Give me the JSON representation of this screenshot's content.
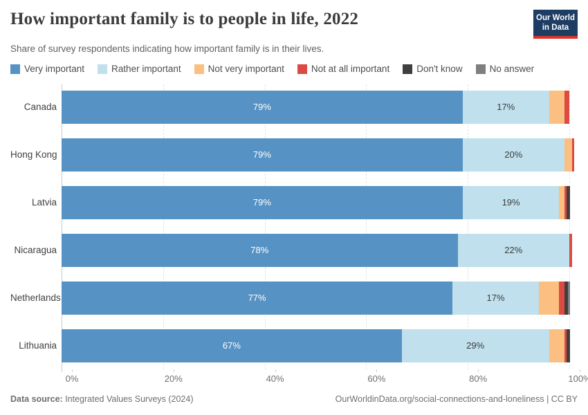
{
  "header": {
    "title": "How important family is to people in life, 2022",
    "subtitle": "Share of survey respondents indicating how important family is in their lives.",
    "logo": {
      "line1": "Our World",
      "line2": "in Data",
      "bg_color": "#1d3d63",
      "accent_color": "#dc3327"
    }
  },
  "legend": [
    {
      "label": "Very important",
      "color": "#5792c4"
    },
    {
      "label": "Rather important",
      "color": "#bfe0ec"
    },
    {
      "label": "Not very important",
      "color": "#fbbf81"
    },
    {
      "label": "Not at all important",
      "color": "#dc4b42"
    },
    {
      "label": "Don't know",
      "color": "#3f3f3f"
    },
    {
      "label": "No answer",
      "color": "#7f7f7f"
    }
  ],
  "chart_data": {
    "type": "bar",
    "orientation": "horizontal",
    "stacked": true,
    "unit": "%",
    "xlim": [
      0,
      100
    ],
    "x_ticks": [
      {
        "value": 0,
        "label": "0%"
      },
      {
        "value": 20,
        "label": "20%"
      },
      {
        "value": 40,
        "label": "40%"
      },
      {
        "value": 60,
        "label": "60%"
      },
      {
        "value": 80,
        "label": "80%"
      },
      {
        "value": 100,
        "label": "100%"
      }
    ],
    "grid": true,
    "legend_position": "top",
    "categories": [
      "Canada",
      "Hong Kong",
      "Latvia",
      "Nicaragua",
      "Netherlands",
      "Lithuania"
    ],
    "series": [
      {
        "name": "Very important",
        "color": "#5792c4",
        "label_color": "#ffffff",
        "values": [
          79,
          79,
          79,
          78,
          77,
          67
        ],
        "labels": [
          "79%",
          "79%",
          "79%",
          "78%",
          "77%",
          "67%"
        ]
      },
      {
        "name": "Rather important",
        "color": "#bfe0ec",
        "label_color": "#3d3d3d",
        "values": [
          17,
          20,
          19,
          22,
          17,
          29
        ],
        "labels": [
          "17%",
          "20%",
          "19%",
          "22%",
          "17%",
          "29%"
        ]
      },
      {
        "name": "Not very important",
        "color": "#fbbf81",
        "label_color": "#3d3d3d",
        "values": [
          3,
          1.5,
          1,
          0,
          4,
          3
        ],
        "labels": [
          "",
          "",
          "",
          "",
          "",
          ""
        ]
      },
      {
        "name": "Not at all important",
        "color": "#dc4b42",
        "label_color": "#ffffff",
        "values": [
          1,
          0.5,
          0.5,
          0.5,
          1,
          0.5
        ],
        "labels": [
          "",
          "",
          "",
          "",
          "",
          ""
        ]
      },
      {
        "name": "Don't know",
        "color": "#3f3f3f",
        "label_color": "#ffffff",
        "values": [
          0,
          0,
          0.7,
          0,
          0.8,
          0.7
        ],
        "labels": [
          "",
          "",
          "",
          "",
          "",
          ""
        ]
      },
      {
        "name": "No answer",
        "color": "#7f7f7f",
        "label_color": "#ffffff",
        "values": [
          0,
          0,
          0,
          0,
          0.3,
          0
        ],
        "labels": [
          "",
          "",
          "",
          "",
          "",
          ""
        ]
      }
    ]
  },
  "footer": {
    "source_label": "Data source:",
    "source_text": " Integrated Values Surveys (2024)",
    "link_text": "OurWorldinData.org/social-connections-and-loneliness | CC BY"
  }
}
